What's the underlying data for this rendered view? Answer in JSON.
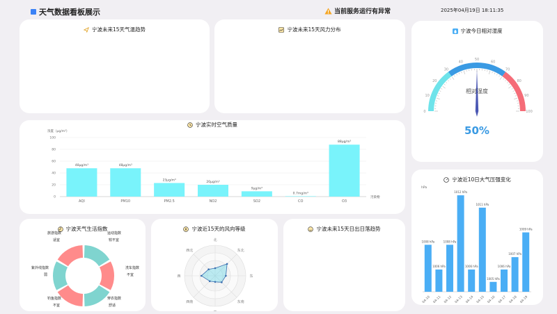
{
  "header": {
    "title": "天气数据看板展示",
    "alert": "当前服务运行有异常",
    "datetime": "2025年04月19日 18:11:35"
  },
  "cards": {
    "temp_trend": "宁波未来15天气温趋势",
    "wind_dist": "宁波未来15天风力分布",
    "humidity": "宁波今日相对湿度",
    "air_quality": "宁波实时空气质量",
    "pressure": "宁波近10日大气压强变化",
    "life_index": "宁波天气生活指数",
    "wind_dir": "宁波近15天的风向等级",
    "sunrise": "宁波未来15天日出日落趋势"
  },
  "humidity": {
    "value": 50,
    "display": "50%",
    "label": "相对湿度",
    "ticks": [
      "0",
      "10",
      "20",
      "30",
      "40",
      "50",
      "60",
      "70",
      "80",
      "90",
      "100"
    ]
  },
  "chart_data": [
    {
      "type": "bar",
      "title": "宁波实时空气质量",
      "ylabel": "浓度（μg/m³）",
      "xlabel": "污染物",
      "ylim": [
        0,
        100
      ],
      "yticks": [
        "0",
        "20",
        "40",
        "60",
        "80",
        "100"
      ],
      "categories": [
        "AQI",
        "PM10",
        "PM2.5",
        "NO2",
        "SO2",
        "CO",
        "O3"
      ],
      "values": [
        48,
        48,
        23,
        20,
        9,
        0.7,
        88
      ],
      "labels": [
        "48μg/m³",
        "48μg/m³",
        "23μg/m³",
        "20μg/m³",
        "9μg/m³",
        "0.7mg/m³",
        "88μg/m³"
      ],
      "color": "#79f3fb"
    },
    {
      "type": "bar",
      "title": "宁波近10日大气压强变化",
      "ylabel": "hPa",
      "categories": [
        "04-10",
        "04-11",
        "04-12",
        "04-13",
        "04-14",
        "04-15",
        "04-16",
        "04-17",
        "04-18",
        "04-19"
      ],
      "values": [
        1008,
        1006,
        1008,
        1012,
        1006,
        1011,
        1005,
        1006,
        1007,
        1009
      ],
      "labels": [
        "1008 hPa",
        "1006 hPa",
        "1008 hPa",
        "1012 hPa",
        "1006 hPa",
        "1011 hPa",
        "1005 hPa",
        "1006 hPa",
        "1007 hPa",
        "1009 hPa"
      ],
      "color": "#4aaef5"
    },
    {
      "type": "pie",
      "title": "宁波天气生活指数",
      "slices": [
        {
          "name": "运动指数",
          "value": "较不宜"
        },
        {
          "name": "洗车指数",
          "value": "不宜"
        },
        {
          "name": "穿衣指数",
          "value": "舒适"
        },
        {
          "name": "钓鱼指数",
          "value": "不宜"
        },
        {
          "name": "紫外线指数",
          "value": "弱"
        },
        {
          "name": "旅游指数",
          "value": "适宜"
        }
      ]
    },
    {
      "type": "radar",
      "title": "宁波近15天的风向等级",
      "axes": [
        "北",
        "东北",
        "东",
        "东南",
        "南",
        "西南",
        "西",
        "西北"
      ],
      "values": [
        0.25,
        0.55,
        0.35,
        0.3,
        0.2,
        0.25,
        0.45,
        0.3
      ]
    }
  ]
}
